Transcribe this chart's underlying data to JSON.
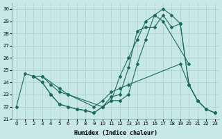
{
  "xlabel": "Humidex (Indice chaleur)",
  "background_color": "#c8e8e8",
  "grid_color": "#a8cccc",
  "line_color": "#1a6b5a",
  "xlim": [
    -0.5,
    23.5
  ],
  "ylim": [
    21,
    30.5
  ],
  "yticks": [
    21,
    22,
    23,
    24,
    25,
    26,
    27,
    28,
    29,
    30
  ],
  "xticks": [
    0,
    1,
    2,
    3,
    4,
    5,
    6,
    7,
    8,
    9,
    10,
    11,
    12,
    13,
    14,
    15,
    16,
    17,
    18,
    19,
    20,
    21,
    22,
    23
  ],
  "series": [
    {
      "x": [
        0,
        1,
        2,
        3,
        5,
        6,
        10,
        11,
        12,
        13,
        14,
        15,
        16,
        17,
        20
      ],
      "y": [
        22,
        24.7,
        24.5,
        24.5,
        23.5,
        23.0,
        22.0,
        22.5,
        24.5,
        26.0,
        27.5,
        29.0,
        29.5,
        29.0,
        25.5
      ]
    },
    {
      "x": [
        2,
        3,
        4,
        5,
        6,
        9,
        10,
        11,
        12,
        13,
        19,
        20,
        21,
        22,
        23
      ],
      "y": [
        24.5,
        24.5,
        23.8,
        23.2,
        23.0,
        22.0,
        22.5,
        23.2,
        23.5,
        23.8,
        25.5,
        23.8,
        22.5,
        21.8,
        21.5
      ]
    },
    {
      "x": [
        2,
        3,
        4,
        5,
        6,
        7,
        8,
        9,
        10,
        11,
        12,
        13,
        14,
        15,
        16,
        17,
        18,
        19,
        20,
        21,
        22,
        23
      ],
      "y": [
        24.5,
        24.0,
        23.0,
        22.2,
        22.0,
        21.8,
        21.7,
        21.5,
        22.0,
        22.5,
        22.5,
        23.0,
        25.5,
        27.5,
        29.5,
        30.0,
        29.5,
        28.8,
        23.8,
        22.5,
        21.8,
        21.5
      ]
    },
    {
      "x": [
        2,
        3,
        4,
        5,
        6,
        7,
        8,
        9,
        10,
        11,
        12,
        13,
        14,
        15,
        16,
        17,
        18,
        19,
        20,
        21,
        22,
        23
      ],
      "y": [
        24.5,
        24.0,
        23.0,
        22.2,
        22.0,
        21.8,
        21.7,
        21.5,
        22.0,
        22.8,
        23.0,
        25.2,
        28.2,
        28.5,
        28.5,
        29.5,
        28.5,
        28.8,
        23.8,
        22.5,
        21.8,
        21.5
      ]
    }
  ]
}
